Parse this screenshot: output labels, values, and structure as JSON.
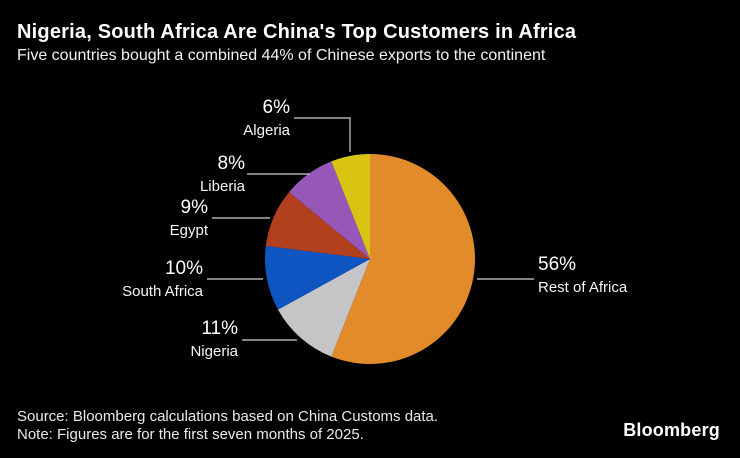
{
  "header": {
    "title": "Nigeria, South Africa Are China's Top Customers in Africa",
    "subtitle": "Five countries bought a combined 44% of Chinese exports to the continent"
  },
  "chart_data": {
    "type": "pie",
    "unit": "%",
    "start_angle_deg": 0,
    "direction": "clockwise",
    "background_color": "#000000",
    "leader_line_color": "#CFCFCF",
    "slices": [
      {
        "label": "Rest of Africa",
        "value": 56,
        "pct_label": "56%",
        "color": "#E18B2B"
      },
      {
        "label": "Nigeria",
        "value": 11,
        "pct_label": "11%",
        "color": "#C5C5C7"
      },
      {
        "label": "South Africa",
        "value": 10,
        "pct_label": "10%",
        "color": "#0F55C2"
      },
      {
        "label": "Egypt",
        "value": 9,
        "pct_label": "9%",
        "color": "#B23F1D"
      },
      {
        "label": "Liberia",
        "value": 8,
        "pct_label": "8%",
        "color": "#9657B8"
      },
      {
        "label": "Algeria",
        "value": 6,
        "pct_label": "6%",
        "color": "#D9C413"
      }
    ]
  },
  "footer": {
    "source": "Source: Bloomberg calculations based on China Customs data.",
    "note": "Note: Figures are for the first seven months of 2025.",
    "logo": "Bloomberg"
  }
}
